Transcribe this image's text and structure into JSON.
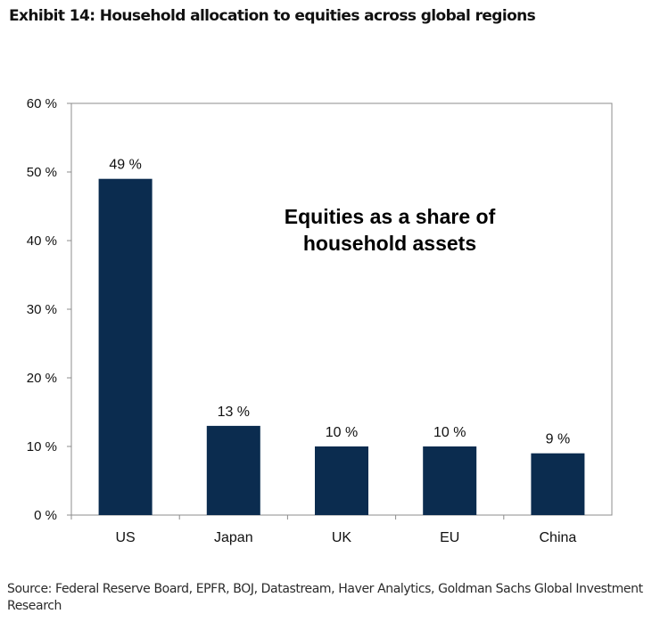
{
  "exhibit": {
    "title": "Exhibit 14: Household allocation to equities across global regions",
    "source": "Source: Federal Reserve Board, EPFR, BOJ, Datastream, Haver Analytics, Goldman Sachs Global Investment Research"
  },
  "chart_data": {
    "type": "bar",
    "categories": [
      "US",
      "Japan",
      "UK",
      "EU",
      "China"
    ],
    "values": [
      49,
      13,
      10,
      10,
      9
    ],
    "data_labels": [
      "49 %",
      "13 %",
      "10 %",
      "10 %",
      "9 %"
    ],
    "ylim": [
      0,
      60
    ],
    "yticks": [
      0,
      10,
      20,
      30,
      40,
      50,
      60
    ],
    "ytick_labels": [
      "0 %",
      "10 %",
      "20 %",
      "30 %",
      "40 %",
      "50 %",
      "60 %"
    ],
    "annotation": [
      "Equities as a share of",
      "household assets"
    ],
    "bar_color": "#0b2c4f",
    "grid": false,
    "legend": "none"
  }
}
